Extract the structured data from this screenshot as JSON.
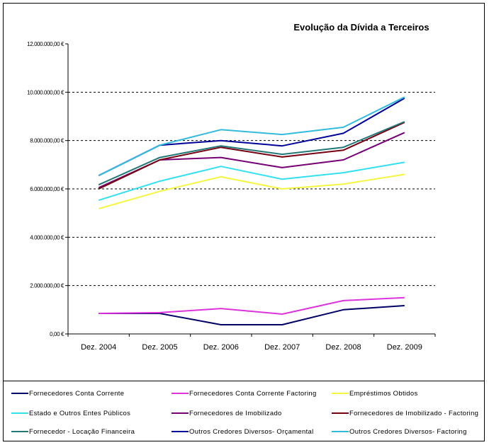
{
  "chart_data": {
    "type": "line",
    "title": "Evolução da Dívida a Terceiros",
    "xlabel": "",
    "ylabel": "",
    "categories": [
      "Dez. 2004",
      "Dez. 2005",
      "Dez. 2006",
      "Dez. 2007",
      "Dez. 2008",
      "Dez. 2009"
    ],
    "ylim": [
      0,
      12000000
    ],
    "yticks": [
      0,
      2000000,
      4000000,
      6000000,
      8000000,
      10000000,
      12000000
    ],
    "ytick_labels": [
      "0,00 €",
      "2.000.000,00 €",
      "4.000.000,00 €",
      "6.000.000,00 €",
      "8.000.000,00 €",
      "10.000.000,00 €",
      "12.000.000,00 €"
    ],
    "grid": "horizontal-dashed",
    "legend_position": "bottom",
    "series": [
      {
        "name": "Fornecedores Conta Corrente",
        "color": "#000066",
        "values": [
          850000,
          850000,
          380000,
          380000,
          1000000,
          1170000
        ]
      },
      {
        "name": "Fornecedores Conta Corrente Factoring",
        "color": "#dd33dd",
        "values": [
          850000,
          880000,
          1050000,
          820000,
          1380000,
          1500000
        ]
      },
      {
        "name": "Empréstimos Obtidos",
        "color": "#f5f542",
        "values": [
          5180000,
          5900000,
          6500000,
          6000000,
          6200000,
          6600000
        ]
      },
      {
        "name": "Estado e Outros Entes Públicos",
        "color": "#33e0f0",
        "values": [
          5530000,
          6320000,
          6930000,
          6400000,
          6670000,
          7100000
        ]
      },
      {
        "name": "Fornecedores de Imobilizado",
        "color": "#770077",
        "values": [
          6050000,
          7200000,
          7300000,
          6880000,
          7200000,
          8330000
        ]
      },
      {
        "name": "Fornecedores de Imobilizado - Factoring",
        "color": "#770011",
        "values": [
          6000000,
          7200000,
          7720000,
          7320000,
          7600000,
          8750000
        ]
      },
      {
        "name": "Fornecedor - Locação Financeira",
        "color": "#227777",
        "values": [
          6170000,
          7300000,
          7780000,
          7430000,
          7720000,
          8780000
        ]
      },
      {
        "name": "Outros Credores Diversos- Orçamental",
        "color": "#000099",
        "values": [
          6550000,
          7810000,
          8000000,
          7780000,
          8300000,
          9750000
        ]
      },
      {
        "name": "Outros Credores Diversos- Factoring",
        "color": "#33bbdd",
        "values": [
          6550000,
          7810000,
          8450000,
          8250000,
          8550000,
          9800000
        ]
      }
    ]
  }
}
